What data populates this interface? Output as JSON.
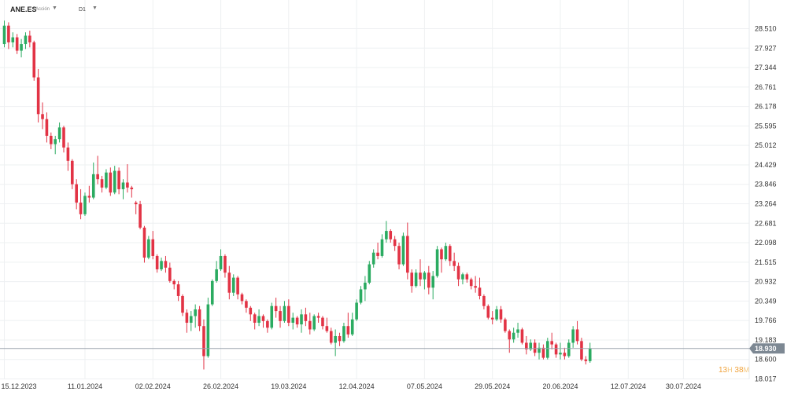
{
  "header": {
    "symbol": "ANE.ES",
    "exchange": "Acción",
    "timeframe": "D1"
  },
  "countdown": {
    "hours": "13",
    "hours_unit": "H",
    "minutes": "38",
    "minutes_unit": "M"
  },
  "chart_data": {
    "type": "candlestick",
    "ylim": [
      18.017,
      29.0
    ],
    "y_ticks": [
      "28.510",
      "27.927",
      "27.344",
      "26.761",
      "26.178",
      "25.595",
      "25.012",
      "24.429",
      "23.846",
      "23.264",
      "22.681",
      "22.098",
      "21.515",
      "20.932",
      "20.349",
      "19.766",
      "19.183",
      "18.600",
      "18.017"
    ],
    "x_ticks": [
      {
        "i": 0,
        "label": "15.12.2023"
      },
      {
        "i": 19,
        "label": "11.01.2024"
      },
      {
        "i": 35,
        "label": "02.02.2024"
      },
      {
        "i": 51,
        "label": "26.02.2024"
      },
      {
        "i": 67,
        "label": "19.03.2024"
      },
      {
        "i": 83,
        "label": "12.04.2024"
      },
      {
        "i": 99,
        "label": "07.05.2024"
      },
      {
        "i": 115,
        "label": "29.05.2024"
      },
      {
        "i": 131,
        "label": "20.06.2024"
      },
      {
        "i": 147,
        "label": "12.07.2024"
      },
      {
        "i": 160,
        "label": "30.07.2024"
      }
    ],
    "current_price": "18.930",
    "current_value": 18.93,
    "colors": {
      "up": "#2bab61",
      "down": "#e23345",
      "price_line": "#9aa3ad",
      "price_tag": "#7d8893"
    },
    "candles": [
      [
        28.05,
        28.75,
        27.95,
        28.6
      ],
      [
        28.6,
        28.7,
        27.9,
        28.1
      ],
      [
        28.1,
        28.4,
        27.95,
        28.25
      ],
      [
        28.25,
        28.35,
        27.75,
        27.85
      ],
      [
        27.85,
        28.2,
        27.65,
        28.05
      ],
      [
        28.05,
        28.4,
        27.9,
        28.3
      ],
      [
        28.3,
        28.45,
        27.95,
        28.1
      ],
      [
        28.1,
        28.15,
        26.95,
        27.05
      ],
      [
        27.05,
        27.3,
        25.7,
        25.95
      ],
      [
        25.95,
        26.3,
        25.5,
        25.8
      ],
      [
        25.8,
        26.0,
        25.1,
        25.3
      ],
      [
        25.3,
        25.4,
        24.9,
        25.05
      ],
      [
        25.05,
        25.3,
        24.75,
        25.2
      ],
      [
        25.2,
        25.7,
        25.1,
        25.55
      ],
      [
        25.55,
        25.6,
        24.8,
        24.95
      ],
      [
        24.95,
        25.1,
        24.25,
        24.55
      ],
      [
        24.55,
        24.6,
        23.7,
        23.85
      ],
      [
        23.85,
        24.0,
        23.1,
        23.3
      ],
      [
        23.3,
        23.7,
        22.8,
        22.95
      ],
      [
        22.95,
        23.6,
        22.9,
        23.5
      ],
      [
        23.5,
        23.8,
        23.3,
        23.45
      ],
      [
        23.45,
        24.5,
        23.4,
        24.15
      ],
      [
        24.15,
        24.7,
        23.85,
        24.0
      ],
      [
        24.0,
        24.1,
        23.6,
        23.75
      ],
      [
        23.75,
        24.3,
        23.7,
        24.2
      ],
      [
        24.2,
        24.35,
        23.5,
        23.6
      ],
      [
        23.6,
        24.4,
        23.55,
        24.25
      ],
      [
        24.25,
        24.35,
        23.55,
        23.7
      ],
      [
        23.7,
        24.0,
        23.4,
        23.9
      ],
      [
        23.9,
        24.45,
        23.6,
        23.75
      ],
      [
        23.75,
        23.8,
        23.45,
        23.7
      ],
      [
        23.3,
        23.35,
        22.95,
        23.25
      ],
      [
        23.25,
        23.35,
        22.5,
        22.55
      ],
      [
        22.55,
        22.6,
        21.5,
        21.65
      ],
      [
        21.65,
        22.3,
        21.6,
        22.2
      ],
      [
        22.2,
        22.45,
        21.6,
        21.7
      ],
      [
        21.7,
        21.75,
        21.2,
        21.3
      ],
      [
        21.3,
        21.65,
        21.25,
        21.55
      ],
      [
        21.55,
        21.7,
        21.2,
        21.35
      ],
      [
        21.35,
        21.5,
        20.9,
        20.95
      ],
      [
        20.95,
        21.0,
        20.7,
        20.85
      ],
      [
        20.85,
        20.95,
        20.35,
        20.5
      ],
      [
        20.5,
        20.55,
        19.9,
        20.0
      ],
      [
        20.0,
        20.1,
        19.4,
        19.7
      ],
      [
        19.7,
        20.05,
        19.45,
        19.9
      ],
      [
        19.9,
        20.25,
        19.55,
        20.1
      ],
      [
        20.1,
        20.2,
        19.45,
        19.6
      ],
      [
        19.6,
        19.8,
        18.3,
        18.7
      ],
      [
        18.7,
        20.45,
        18.65,
        20.25
      ],
      [
        20.25,
        21.0,
        20.2,
        20.95
      ],
      [
        20.95,
        21.55,
        20.9,
        21.3
      ],
      [
        21.3,
        21.9,
        21.25,
        21.7
      ],
      [
        21.7,
        21.75,
        21.05,
        21.2
      ],
      [
        21.2,
        21.4,
        20.4,
        20.6
      ],
      [
        20.6,
        21.15,
        20.5,
        21.05
      ],
      [
        21.05,
        21.1,
        20.4,
        20.55
      ],
      [
        20.55,
        20.6,
        20.25,
        20.35
      ],
      [
        20.35,
        20.4,
        20.0,
        20.15
      ],
      [
        20.15,
        20.2,
        19.75,
        19.95
      ],
      [
        19.95,
        20.0,
        19.5,
        19.7
      ],
      [
        19.7,
        20.1,
        19.6,
        19.9
      ],
      [
        19.9,
        19.95,
        19.55,
        19.75
      ],
      [
        19.75,
        19.8,
        19.4,
        19.55
      ],
      [
        19.55,
        20.3,
        19.5,
        20.2
      ],
      [
        20.2,
        20.45,
        19.85,
        20.05
      ],
      [
        20.05,
        20.2,
        19.55,
        19.75
      ],
      [
        19.75,
        20.35,
        19.7,
        20.2
      ],
      [
        20.2,
        20.4,
        19.6,
        19.7
      ],
      [
        19.7,
        20.0,
        19.5,
        19.85
      ],
      [
        19.85,
        19.9,
        19.55,
        19.65
      ],
      [
        19.65,
        20.1,
        19.4,
        19.95
      ],
      [
        19.95,
        20.15,
        19.6,
        19.75
      ],
      [
        19.75,
        20.0,
        19.35,
        19.5
      ],
      [
        19.5,
        19.95,
        19.45,
        19.9
      ],
      [
        19.9,
        20.0,
        19.7,
        19.85
      ],
      [
        19.85,
        19.9,
        19.5,
        19.6
      ],
      [
        19.6,
        19.85,
        19.4,
        19.45
      ],
      [
        19.45,
        19.55,
        19.05,
        19.1
      ],
      [
        19.1,
        19.5,
        18.7,
        19.3
      ],
      [
        19.3,
        19.4,
        19.0,
        19.15
      ],
      [
        19.15,
        19.7,
        19.1,
        19.6
      ],
      [
        19.6,
        20.0,
        19.25,
        19.35
      ],
      [
        19.35,
        20.0,
        19.3,
        19.8
      ],
      [
        19.8,
        20.4,
        19.75,
        20.3
      ],
      [
        20.3,
        20.8,
        20.25,
        20.7
      ],
      [
        20.7,
        21.1,
        20.35,
        20.9
      ],
      [
        20.9,
        21.55,
        20.85,
        21.45
      ],
      [
        21.45,
        21.9,
        21.35,
        21.8
      ],
      [
        21.8,
        22.1,
        21.6,
        21.7
      ],
      [
        21.7,
        22.35,
        21.65,
        22.2
      ],
      [
        22.2,
        22.75,
        22.1,
        22.45
      ],
      [
        22.45,
        22.5,
        22.1,
        22.2
      ],
      [
        22.2,
        22.3,
        21.85,
        22.0
      ],
      [
        22.0,
        22.1,
        21.3,
        21.45
      ],
      [
        21.45,
        22.4,
        21.4,
        22.3
      ],
      [
        22.3,
        22.7,
        21.0,
        21.2
      ],
      [
        21.2,
        21.3,
        20.6,
        20.8
      ],
      [
        20.8,
        21.3,
        20.75,
        21.2
      ],
      [
        21.2,
        21.6,
        20.8,
        21.0
      ],
      [
        21.0,
        21.25,
        20.7,
        21.2
      ],
      [
        21.2,
        21.4,
        20.55,
        20.75
      ],
      [
        20.75,
        21.25,
        20.4,
        21.1
      ],
      [
        21.1,
        22.0,
        21.05,
        21.9
      ],
      [
        21.9,
        21.95,
        21.2,
        21.6
      ],
      [
        21.6,
        22.1,
        21.55,
        22.0
      ],
      [
        22.0,
        22.05,
        21.4,
        21.55
      ],
      [
        21.55,
        21.8,
        21.25,
        21.4
      ],
      [
        21.4,
        21.5,
        20.8,
        21.0
      ],
      [
        21.0,
        21.2,
        20.85,
        21.15
      ],
      [
        21.15,
        21.2,
        20.9,
        21.0
      ],
      [
        21.0,
        21.05,
        20.7,
        20.8
      ],
      [
        20.8,
        21.1,
        20.6,
        20.75
      ],
      [
        20.75,
        21.05,
        20.4,
        20.5
      ],
      [
        20.5,
        20.55,
        20.1,
        20.2
      ],
      [
        20.2,
        20.25,
        19.8,
        19.85
      ],
      [
        19.85,
        20.05,
        19.65,
        19.8
      ],
      [
        19.8,
        20.2,
        19.75,
        20.1
      ],
      [
        20.1,
        20.2,
        19.7,
        19.8
      ],
      [
        19.8,
        19.85,
        19.4,
        19.45
      ],
      [
        19.45,
        19.5,
        18.8,
        19.2
      ],
      [
        19.2,
        19.55,
        19.1,
        19.4
      ],
      [
        19.4,
        19.7,
        19.25,
        19.5
      ],
      [
        19.5,
        19.55,
        19.05,
        19.1
      ],
      [
        19.1,
        19.3,
        18.75,
        18.9
      ],
      [
        18.9,
        19.2,
        18.85,
        19.1
      ],
      [
        19.1,
        19.2,
        18.7,
        18.8
      ],
      [
        18.8,
        19.1,
        18.6,
        18.95
      ],
      [
        18.95,
        19.05,
        18.6,
        18.65
      ],
      [
        18.65,
        19.25,
        18.6,
        19.15
      ],
      [
        19.15,
        19.4,
        18.9,
        19.05
      ],
      [
        19.05,
        19.1,
        18.65,
        18.75
      ],
      [
        18.75,
        19.1,
        18.6,
        18.8
      ],
      [
        18.8,
        18.95,
        18.6,
        18.7
      ],
      [
        18.7,
        19.2,
        18.65,
        19.1
      ],
      [
        19.1,
        19.6,
        18.95,
        19.5
      ],
      [
        19.5,
        19.75,
        19.05,
        19.15
      ],
      [
        19.15,
        19.25,
        18.55,
        18.6
      ],
      [
        18.6,
        18.7,
        18.45,
        18.55
      ],
      [
        18.55,
        19.1,
        18.5,
        18.93
      ]
    ]
  }
}
